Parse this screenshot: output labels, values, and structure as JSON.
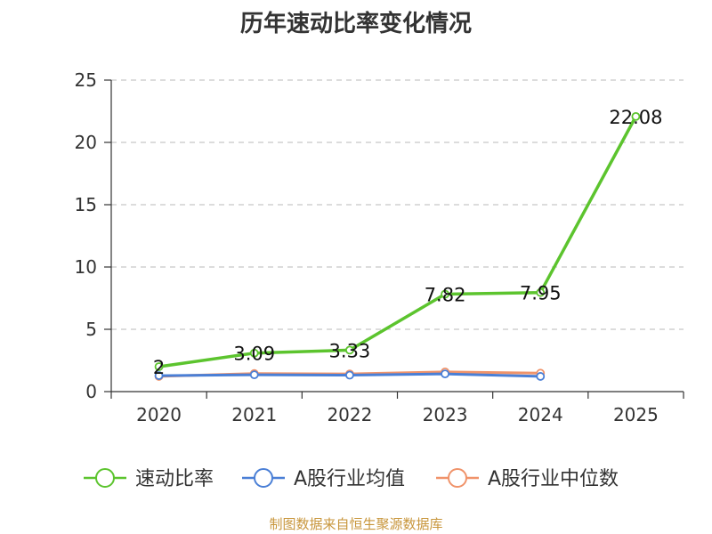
{
  "chart_data": {
    "type": "line",
    "title": "历年速动比率变化情况",
    "categories": [
      "2020",
      "2021",
      "2022",
      "2023",
      "2024",
      "2025"
    ],
    "y_ticks": [
      "0",
      "5",
      "10",
      "15",
      "20",
      "25"
    ],
    "ylim": [
      0,
      25
    ],
    "grid": "horizontal dashed",
    "legend_position": "bottom",
    "series": [
      {
        "name": "速动比率",
        "color": "#5cc42e",
        "values": [
          2,
          3.09,
          3.33,
          7.82,
          7.95,
          22.08
        ],
        "labels": [
          "2",
          "3.09",
          "3.33",
          "7.82",
          "7.95",
          "22.08"
        ]
      },
      {
        "name": "A股行业均值",
        "color": "#4a7fd6",
        "values": [
          1.28,
          1.35,
          1.32,
          1.42,
          1.22,
          null
        ]
      },
      {
        "name": "A股行业中位数",
        "color": "#f0936a",
        "values": [
          1.22,
          1.45,
          1.42,
          1.58,
          1.48,
          null
        ]
      }
    ]
  },
  "source": "制图数据来自恒生聚源数据库"
}
